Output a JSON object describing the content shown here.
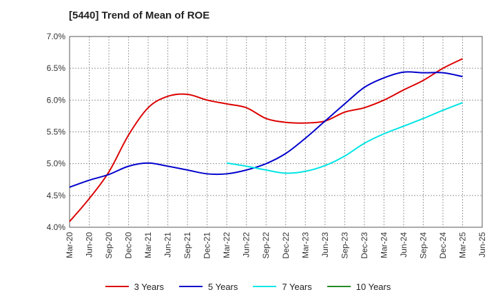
{
  "title": "[5440]  Trend of Mean of ROE",
  "chart_data": {
    "type": "line",
    "title": "[5440]  Trend of Mean of ROE",
    "xlabel": "",
    "ylabel": "",
    "x_tick_labels": [
      "Mar-20",
      "Jun-20",
      "Sep-20",
      "Dec-20",
      "Mar-21",
      "Jun-21",
      "Sep-21",
      "Dec-21",
      "Mar-22",
      "Jun-22",
      "Sep-22",
      "Dec-22",
      "Mar-23",
      "Jun-23",
      "Sep-23",
      "Dec-23",
      "Mar-24",
      "Jun-24",
      "Sep-24",
      "Dec-24",
      "Mar-25",
      "Jun-25"
    ],
    "y_tick_labels": [
      "4.0%",
      "4.5%",
      "5.0%",
      "5.5%",
      "6.0%",
      "6.5%",
      "7.0%"
    ],
    "ylim": [
      4.0,
      7.0
    ],
    "grid": true,
    "legend_position": "bottom",
    "series": [
      {
        "name": "3 Years",
        "color": "#dd0000",
        "x": [
          "Mar-20",
          "Jun-20",
          "Sep-20",
          "Dec-20",
          "Mar-21",
          "Jun-21",
          "Sep-21",
          "Dec-21",
          "Mar-22",
          "Jun-22",
          "Sep-22",
          "Dec-22",
          "Mar-23",
          "Jun-23",
          "Sep-23",
          "Dec-23",
          "Mar-24",
          "Jun-24",
          "Sep-24",
          "Dec-24",
          "Mar-25"
        ],
        "values": [
          4.09,
          4.45,
          4.87,
          5.45,
          5.88,
          6.06,
          6.09,
          6.0,
          5.94,
          5.88,
          5.71,
          5.65,
          5.64,
          5.67,
          5.81,
          5.88,
          6.0,
          6.16,
          6.31,
          6.5,
          6.65
        ]
      },
      {
        "name": "5 Years",
        "color": "#0000cc",
        "x": [
          "Mar-20",
          "Jun-20",
          "Sep-20",
          "Dec-20",
          "Mar-21",
          "Jun-21",
          "Sep-21",
          "Dec-21",
          "Mar-22",
          "Jun-22",
          "Sep-22",
          "Dec-22",
          "Mar-23",
          "Jun-23",
          "Sep-23",
          "Dec-23",
          "Mar-24",
          "Jun-24",
          "Sep-24",
          "Dec-24",
          "Mar-25"
        ],
        "values": [
          4.63,
          4.74,
          4.83,
          4.96,
          5.01,
          4.96,
          4.9,
          4.84,
          4.84,
          4.9,
          5.0,
          5.16,
          5.4,
          5.67,
          5.94,
          6.2,
          6.35,
          6.44,
          6.43,
          6.43,
          6.37
        ]
      },
      {
        "name": "7 Years",
        "color": "#00e5e5",
        "x": [
          "Mar-22",
          "Jun-22",
          "Sep-22",
          "Dec-22",
          "Mar-23",
          "Jun-23",
          "Sep-23",
          "Dec-23",
          "Mar-24",
          "Jun-24",
          "Sep-24",
          "Dec-24",
          "Mar-25"
        ],
        "values": [
          5.01,
          4.96,
          4.9,
          4.85,
          4.88,
          4.97,
          5.12,
          5.32,
          5.47,
          5.59,
          5.71,
          5.84,
          5.96
        ]
      },
      {
        "name": "10 Years",
        "color": "#228b22",
        "x": [],
        "values": []
      }
    ]
  }
}
